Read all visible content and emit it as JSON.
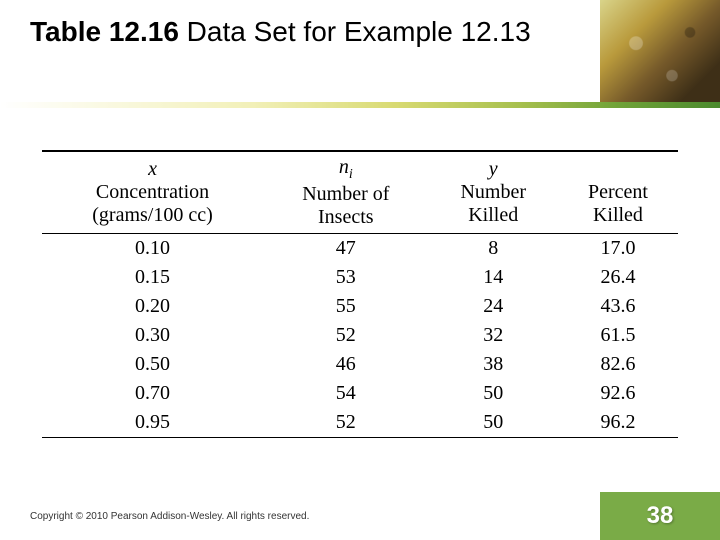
{
  "title": {
    "bold": "Table 12.16",
    "rest": "  Data Set for Example 12.13"
  },
  "headers": {
    "col1": {
      "var": "x",
      "lines": [
        "Concentration",
        "(grams/100 cc)"
      ]
    },
    "col2": {
      "var": "n",
      "sub": "i",
      "lines": [
        "Number of",
        "Insects"
      ]
    },
    "col3": {
      "var": "y",
      "lines": [
        "Number",
        "Killed"
      ]
    },
    "col4": {
      "var": "",
      "lines": [
        "Percent",
        "Killed"
      ]
    }
  },
  "rows": [
    [
      "0.10",
      "47",
      "8",
      "17.0"
    ],
    [
      "0.15",
      "53",
      "14",
      "26.4"
    ],
    [
      "0.20",
      "55",
      "24",
      "43.6"
    ],
    [
      "0.30",
      "52",
      "32",
      "61.5"
    ],
    [
      "0.50",
      "46",
      "38",
      "82.6"
    ],
    [
      "0.70",
      "54",
      "50",
      "92.6"
    ],
    [
      "0.95",
      "52",
      "50",
      "96.2"
    ]
  ],
  "copyright": "Copyright © 2010 Pearson Addison-Wesley. All rights reserved.",
  "page": "38",
  "style": {
    "gradient_colors": [
      "#ffffff",
      "#f2f0b8",
      "#d8da72",
      "#a7c04e",
      "#6fa238",
      "#4b8a2e"
    ],
    "pagebox_bg": "#7aab47",
    "header_font_size": 20,
    "cell_font_size": 20,
    "rule_color": "#000000"
  }
}
